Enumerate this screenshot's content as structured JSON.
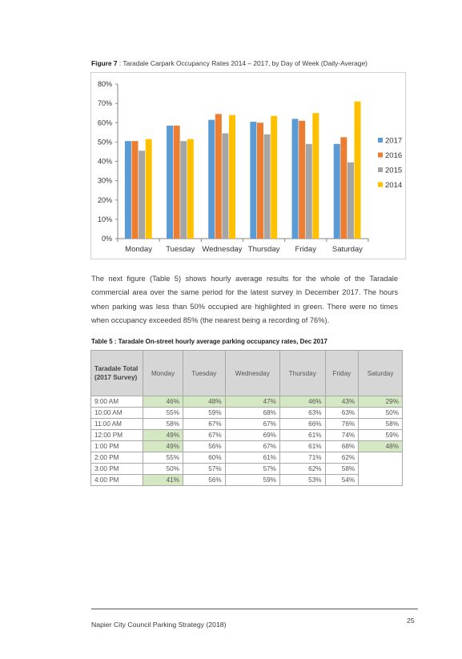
{
  "figure": {
    "caption_bold": "Figure 7",
    "caption_rest": " : Taradale Carpark Occupancy Rates 2014 – 2017, by Day of Week (Daily-Average)"
  },
  "chart_data": {
    "type": "bar",
    "categories": [
      "Monday",
      "Tuesday",
      "Wednesday",
      "Thursday",
      "Friday",
      "Saturday"
    ],
    "series": [
      {
        "name": "2017",
        "color": "#5b9bd5",
        "values": [
          50.5,
          58.5,
          61.5,
          60.5,
          62,
          49
        ]
      },
      {
        "name": "2016",
        "color": "#ed7d31",
        "values": [
          50.5,
          58.5,
          64.5,
          60,
          61,
          52.5
        ]
      },
      {
        "name": "2015",
        "color": "#a5a5a5",
        "values": [
          45.5,
          50.5,
          54.5,
          54,
          49,
          39.5
        ]
      },
      {
        "name": "2014",
        "color": "#ffc000",
        "values": [
          51.5,
          51.5,
          64,
          63.5,
          65,
          71
        ]
      }
    ],
    "yticks": [
      "0%",
      "10%",
      "20%",
      "30%",
      "40%",
      "50%",
      "60%",
      "70%",
      "80%"
    ],
    "ylim": [
      0,
      80
    ],
    "legend_position": "right",
    "grid": false
  },
  "paragraph": "The next figure (Table 5) shows hourly average results for the whole of the Taradale commercial area over the same period for the latest survey in December 2017.  The hours when parking was less than 50% occupied are highlighted in green.  There were no times when occupancy exceeded 85% (the nearest being a recording of 76%).",
  "table": {
    "caption": "Table 5 : Taradale On-street hourly average parking occupancy rates, Dec 2017",
    "header_first": "Taradale Total (2017 Survey)",
    "headers": [
      "Monday",
      "Tuesday",
      "Wednesday",
      "Thursday",
      "Friday",
      "Saturday"
    ],
    "rows": [
      {
        "time": "9:00 AM",
        "values": [
          "46%",
          "48%",
          "47%",
          "46%",
          "43%",
          "29%"
        ]
      },
      {
        "time": "10:00 AM",
        "values": [
          "55%",
          "59%",
          "68%",
          "63%",
          "63%",
          "50%"
        ]
      },
      {
        "time": "11:00 AM",
        "values": [
          "58%",
          "67%",
          "67%",
          "66%",
          "76%",
          "58%"
        ]
      },
      {
        "time": "12:00 PM",
        "values": [
          "49%",
          "67%",
          "69%",
          "61%",
          "74%",
          "59%"
        ]
      },
      {
        "time": "1:00 PM",
        "values": [
          "49%",
          "56%",
          "67%",
          "61%",
          "68%",
          "48%"
        ]
      },
      {
        "time": "2:00 PM",
        "values": [
          "55%",
          "60%",
          "61%",
          "71%",
          "62%",
          ""
        ]
      },
      {
        "time": "3:00 PM",
        "values": [
          "50%",
          "57%",
          "57%",
          "62%",
          "58%",
          ""
        ]
      },
      {
        "time": "4:00 PM",
        "values": [
          "41%",
          "56%",
          "59%",
          "53%",
          "54%",
          ""
        ]
      }
    ],
    "highlight_color": "#d5e8c4"
  },
  "footer": {
    "text": "Napier City Council Parking Strategy (2018)",
    "page_number": "25"
  }
}
